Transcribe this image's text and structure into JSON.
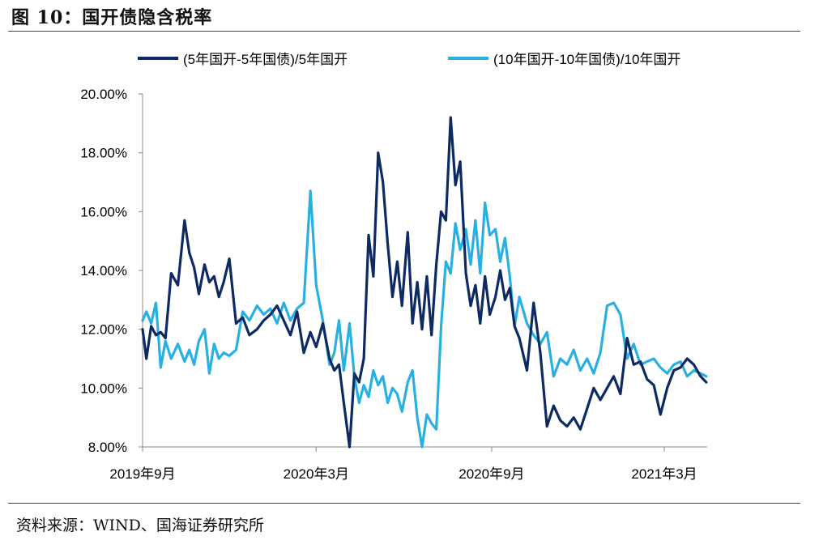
{
  "figure": {
    "title": "图 10：国开债隐含税率",
    "source": "资料来源：WIND、国海证券研究所"
  },
  "colors": {
    "series_dark": "#0d2a63",
    "series_light": "#29b0e2",
    "axis": "#888888"
  },
  "chart_data": {
    "type": "line",
    "title": "",
    "xlabel": "",
    "ylabel": "",
    "legend_position": "top",
    "grid": false,
    "ylim": [
      8,
      20
    ],
    "yticks": [
      "8.00%",
      "10.00%",
      "12.00%",
      "14.00%",
      "16.00%",
      "18.00%",
      "20.00%"
    ],
    "ytick_values": [
      8,
      10,
      12,
      14,
      16,
      18,
      20
    ],
    "xlim": [
      "2019-09-01",
      "2021-04-15"
    ],
    "xticks": [
      "2019年9月",
      "2020年3月",
      "2020年9月",
      "2021年3月"
    ],
    "xtick_dates": [
      "2019-09-01",
      "2020-03-01",
      "2020-09-01",
      "2021-03-01"
    ],
    "series": [
      {
        "name": "(5年国开-5年国债)/5年国开",
        "color": "#0d2a63",
        "x": [
          "2019-09-01",
          "2019-09-05",
          "2019-09-10",
          "2019-09-15",
          "2019-09-20",
          "2019-09-25",
          "2019-10-01",
          "2019-10-08",
          "2019-10-15",
          "2019-10-20",
          "2019-10-25",
          "2019-10-30",
          "2019-11-05",
          "2019-11-10",
          "2019-11-15",
          "2019-11-20",
          "2019-11-25",
          "2019-12-01",
          "2019-12-08",
          "2019-12-15",
          "2019-12-22",
          "2019-12-30",
          "2020-01-06",
          "2020-01-13",
          "2020-01-20",
          "2020-01-27",
          "2020-02-03",
          "2020-02-10",
          "2020-02-17",
          "2020-02-24",
          "2020-03-01",
          "2020-03-08",
          "2020-03-15",
          "2020-03-20",
          "2020-03-25",
          "2020-03-30",
          "2020-04-05",
          "2020-04-10",
          "2020-04-15",
          "2020-04-20",
          "2020-04-25",
          "2020-04-30",
          "2020-05-05",
          "2020-05-10",
          "2020-05-15",
          "2020-05-20",
          "2020-05-25",
          "2020-05-30",
          "2020-06-05",
          "2020-06-10",
          "2020-06-15",
          "2020-06-20",
          "2020-06-25",
          "2020-06-30",
          "2020-07-05",
          "2020-07-10",
          "2020-07-15",
          "2020-07-20",
          "2020-07-25",
          "2020-07-30",
          "2020-08-05",
          "2020-08-10",
          "2020-08-15",
          "2020-08-20",
          "2020-08-25",
          "2020-08-30",
          "2020-09-05",
          "2020-09-10",
          "2020-09-15",
          "2020-09-20",
          "2020-09-25",
          "2020-09-30",
          "2020-10-08",
          "2020-10-15",
          "2020-10-22",
          "2020-10-29",
          "2020-11-05",
          "2020-11-12",
          "2020-11-19",
          "2020-11-26",
          "2020-12-03",
          "2020-12-10",
          "2020-12-17",
          "2020-12-24",
          "2020-12-31",
          "2021-01-07",
          "2021-01-14",
          "2021-01-21",
          "2021-01-28",
          "2021-02-04",
          "2021-02-11",
          "2021-02-18",
          "2021-02-25",
          "2021-03-04",
          "2021-03-11",
          "2021-03-18",
          "2021-03-25",
          "2021-04-01",
          "2021-04-08",
          "2021-04-14"
        ],
        "values": [
          12.0,
          11.0,
          12.1,
          11.8,
          11.9,
          11.7,
          13.9,
          13.5,
          15.7,
          14.6,
          14.1,
          13.2,
          14.2,
          13.6,
          13.8,
          13.1,
          13.6,
          14.4,
          12.2,
          12.4,
          11.8,
          12.0,
          12.3,
          12.5,
          12.8,
          12.3,
          11.8,
          12.6,
          11.2,
          11.9,
          11.4,
          12.2,
          11.0,
          10.6,
          10.8,
          9.5,
          8.0,
          10.5,
          10.2,
          11.0,
          15.2,
          13.8,
          18.0,
          17.0,
          14.9,
          13.1,
          14.3,
          12.8,
          15.3,
          12.2,
          13.6,
          12.0,
          13.8,
          11.8,
          14.2,
          16.0,
          15.7,
          19.2,
          16.9,
          17.7,
          13.9,
          12.8,
          13.5,
          12.2,
          13.8,
          12.5,
          13.1,
          14.0,
          13.0,
          13.4,
          12.1,
          11.7,
          10.6,
          12.9,
          11.2,
          8.7,
          9.4,
          8.9,
          8.7,
          9.0,
          8.6,
          9.3,
          10.0,
          9.6,
          10.0,
          10.4,
          9.8,
          11.7,
          10.8,
          10.9,
          10.3,
          10.1,
          9.1,
          10.0,
          10.6,
          10.7,
          11.0,
          10.8,
          10.4,
          10.2
        ]
      },
      {
        "name": "(10年国开-10年国债)/10年国开",
        "color": "#29b0e2",
        "x": [
          "2019-09-01",
          "2019-09-05",
          "2019-09-10",
          "2019-09-15",
          "2019-09-20",
          "2019-09-25",
          "2019-10-01",
          "2019-10-08",
          "2019-10-15",
          "2019-10-20",
          "2019-10-25",
          "2019-10-30",
          "2019-11-05",
          "2019-11-10",
          "2019-11-15",
          "2019-11-20",
          "2019-11-25",
          "2019-12-01",
          "2019-12-08",
          "2019-12-15",
          "2019-12-22",
          "2019-12-30",
          "2020-01-06",
          "2020-01-13",
          "2020-01-20",
          "2020-01-27",
          "2020-02-03",
          "2020-02-10",
          "2020-02-17",
          "2020-02-24",
          "2020-03-01",
          "2020-03-08",
          "2020-03-15",
          "2020-03-20",
          "2020-03-25",
          "2020-03-30",
          "2020-04-05",
          "2020-04-10",
          "2020-04-15",
          "2020-04-20",
          "2020-04-25",
          "2020-04-30",
          "2020-05-05",
          "2020-05-10",
          "2020-05-15",
          "2020-05-20",
          "2020-05-25",
          "2020-05-30",
          "2020-06-05",
          "2020-06-10",
          "2020-06-15",
          "2020-06-20",
          "2020-06-25",
          "2020-06-30",
          "2020-07-05",
          "2020-07-10",
          "2020-07-15",
          "2020-07-20",
          "2020-07-25",
          "2020-07-30",
          "2020-08-05",
          "2020-08-10",
          "2020-08-15",
          "2020-08-20",
          "2020-08-25",
          "2020-08-30",
          "2020-09-05",
          "2020-09-10",
          "2020-09-15",
          "2020-09-20",
          "2020-09-25",
          "2020-09-30",
          "2020-10-08",
          "2020-10-15",
          "2020-10-22",
          "2020-10-29",
          "2020-11-05",
          "2020-11-12",
          "2020-11-19",
          "2020-11-26",
          "2020-12-03",
          "2020-12-10",
          "2020-12-17",
          "2020-12-24",
          "2020-12-31",
          "2021-01-07",
          "2021-01-14",
          "2021-01-21",
          "2021-01-28",
          "2021-02-04",
          "2021-02-11",
          "2021-02-18",
          "2021-02-25",
          "2021-03-04",
          "2021-03-11",
          "2021-03-18",
          "2021-03-25",
          "2021-04-01",
          "2021-04-08",
          "2021-04-14"
        ],
        "values": [
          12.3,
          12.6,
          12.2,
          12.9,
          10.7,
          11.6,
          11.0,
          11.5,
          10.9,
          11.3,
          10.8,
          11.6,
          12.0,
          10.5,
          11.5,
          11.0,
          11.2,
          11.1,
          11.3,
          12.6,
          12.3,
          12.8,
          12.5,
          12.7,
          12.2,
          12.9,
          12.3,
          12.7,
          12.9,
          16.7,
          13.5,
          12.3,
          10.8,
          11.2,
          12.3,
          10.6,
          12.2,
          10.4,
          9.5,
          10.1,
          9.7,
          10.6,
          10.1,
          10.4,
          9.5,
          10.0,
          9.8,
          9.2,
          10.2,
          10.6,
          9.0,
          8.0,
          9.1,
          8.8,
          8.6,
          12.1,
          14.3,
          13.9,
          15.6,
          14.7,
          15.4,
          14.2,
          15.7,
          13.9,
          16.3,
          15.2,
          15.4,
          14.3,
          15.1,
          13.8,
          12.1,
          13.1,
          12.2,
          11.8,
          11.5,
          11.9,
          10.4,
          11.0,
          10.8,
          11.3,
          10.6,
          11.0,
          10.5,
          11.2,
          12.8,
          12.9,
          12.5,
          11.0,
          11.5,
          10.8,
          10.9,
          11.0,
          10.7,
          10.5,
          10.8,
          10.9,
          10.4,
          10.6,
          10.5,
          10.4
        ]
      }
    ]
  }
}
